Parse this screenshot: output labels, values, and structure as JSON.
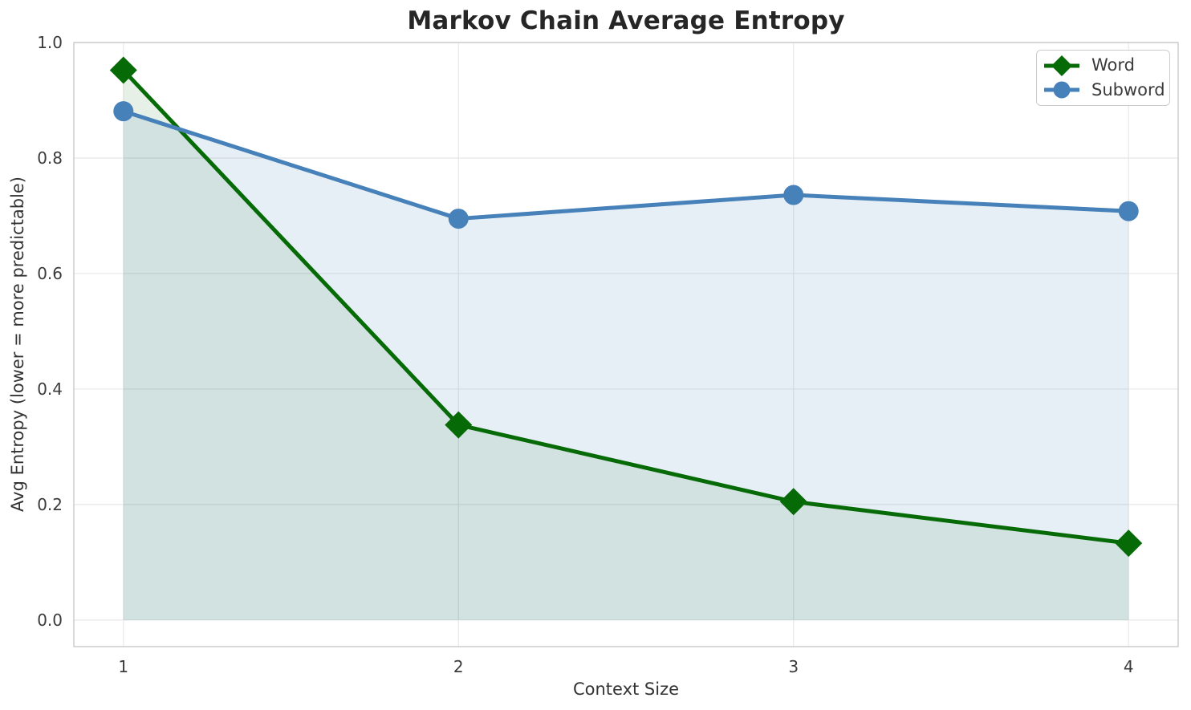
{
  "chart_data": {
    "type": "line",
    "title": "Markov Chain Average Entropy",
    "xlabel": "Context Size",
    "ylabel": "Avg Entropy (lower = more predictable)",
    "x": [
      1,
      2,
      3,
      4
    ],
    "series": [
      {
        "name": "Word",
        "color": "#066b06",
        "marker": "diamond",
        "line_width": 5,
        "fill_opacity": 0.1,
        "values": [
          0.952,
          0.338,
          0.205,
          0.133
        ]
      },
      {
        "name": "Subword",
        "color": "#4781b9",
        "marker": "circle",
        "line_width": 5,
        "fill_opacity": 0.13,
        "values": [
          0.881,
          0.695,
          0.736,
          0.708
        ]
      }
    ],
    "x_ticks": [
      {
        "value": 1,
        "label": "1"
      },
      {
        "value": 2,
        "label": "2"
      },
      {
        "value": 3,
        "label": "3"
      },
      {
        "value": 4,
        "label": "4"
      }
    ],
    "y_ticks": [
      {
        "value": 0.0,
        "label": "0.0"
      },
      {
        "value": 0.2,
        "label": "0.2"
      },
      {
        "value": 0.4,
        "label": "0.4"
      },
      {
        "value": 0.6,
        "label": "0.6"
      },
      {
        "value": 0.8,
        "label": "0.8"
      },
      {
        "value": 1.0,
        "label": "1.0"
      }
    ],
    "xlim": [
      0.852,
      4.148
    ],
    "ylim": [
      -0.046,
      1.0
    ],
    "grid": true,
    "area_fill_to_zero": true,
    "legend": {
      "position": "upper right",
      "entries": [
        "Word",
        "Subword"
      ]
    }
  },
  "style": {
    "background": "#ffffff",
    "grid_color": "#e7e7e7",
    "spine_color": "#c9c9c9",
    "tick_color": "#3b3b3b",
    "title_color": "#262626",
    "axis_label_color": "#333333",
    "legend_border": "#cccccc",
    "legend_background": "rgba(255,255,255,0.85)",
    "legend_text": "#3b3b3b"
  }
}
